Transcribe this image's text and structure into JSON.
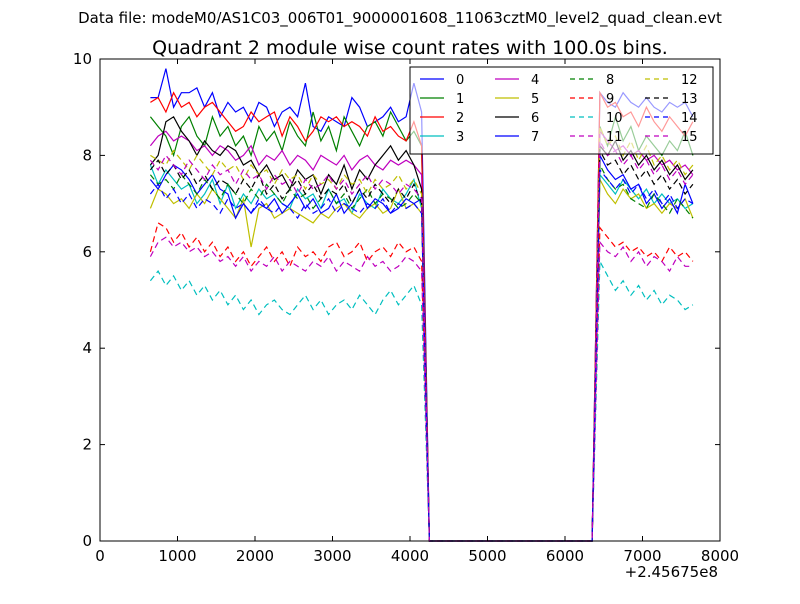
{
  "figure": {
    "suptitle": "Data file: modeM0/AS1C03_006T01_9000001608_11063cztM0_level2_quad_clean.evt"
  },
  "chart_data": {
    "type": "line",
    "title": "Quadrant 2 module wise count rates with 100.0s bins.",
    "xlabel": "",
    "ylabel": "",
    "x_offset_label": "+2.45675e8",
    "xlim": [
      0,
      8000
    ],
    "ylim": [
      0,
      10
    ],
    "x_ticks": [
      "0",
      "1000",
      "2000",
      "3000",
      "4000",
      "5000",
      "6000",
      "7000",
      "8000"
    ],
    "y_ticks": [
      "0",
      "2",
      "4",
      "6",
      "8",
      "10"
    ],
    "grid": false,
    "legend": {
      "placement": "top-right",
      "columns": 4
    },
    "x": [
      650,
      750,
      850,
      950,
      1050,
      1150,
      1250,
      1350,
      1450,
      1550,
      1650,
      1750,
      1850,
      1950,
      2050,
      2150,
      2250,
      2350,
      2450,
      2550,
      2650,
      2750,
      2850,
      2950,
      3050,
      3150,
      3250,
      3350,
      3450,
      3550,
      3650,
      3750,
      3850,
      3950,
      4050,
      4150,
      4250,
      4350,
      4450,
      4550,
      4650,
      4750,
      4850,
      4950,
      5050,
      5150,
      5250,
      5350,
      5450,
      5550,
      5650,
      5750,
      5850,
      5950,
      6050,
      6150,
      6250,
      6350,
      6450,
      6550,
      6650,
      6750,
      6850,
      6950,
      7050,
      7150,
      7250,
      7350,
      7450,
      7550,
      7650
    ],
    "series": [
      {
        "name": "0",
        "color": "#0000ff",
        "dash": "solid",
        "values": [
          9.2,
          9.2,
          9.8,
          9.0,
          9.3,
          9.3,
          9.4,
          9.0,
          9.3,
          8.8,
          9.1,
          8.9,
          9.0,
          8.7,
          9.1,
          9.0,
          8.6,
          8.9,
          9.0,
          8.8,
          9.5,
          8.6,
          8.5,
          8.8,
          8.7,
          8.6,
          9.2,
          9.0,
          8.6,
          8.7,
          8.8,
          9.0,
          8.7,
          8.8,
          9.5,
          8.9,
          0,
          0,
          0,
          0,
          0,
          0,
          0,
          0,
          0,
          0,
          0,
          0,
          0,
          0,
          0,
          0,
          0,
          0,
          0,
          0,
          0,
          0,
          9.3,
          9.1,
          9.0,
          9.3,
          9.1,
          9.0,
          9.2,
          9.0,
          8.9,
          9.1,
          9.0,
          9.1,
          8.8
        ]
      },
      {
        "name": "1",
        "color": "#008000",
        "dash": "solid",
        "values": [
          8.8,
          8.6,
          8.4,
          8.0,
          8.6,
          8.8,
          8.4,
          8.2,
          8.8,
          8.4,
          8.6,
          8.2,
          8.4,
          8.0,
          8.6,
          8.3,
          8.5,
          8.1,
          8.7,
          8.4,
          8.2,
          8.9,
          8.3,
          8.6,
          8.1,
          8.8,
          8.5,
          8.2,
          8.6,
          8.7,
          8.4,
          8.9,
          8.6,
          8.3,
          8.5,
          8.2,
          0,
          0,
          0,
          0,
          0,
          0,
          0,
          0,
          0,
          0,
          0,
          0,
          0,
          0,
          0,
          0,
          0,
          0,
          0,
          0,
          0,
          0,
          8.6,
          8.2,
          8.8,
          8.3,
          8.6,
          8.1,
          8.4,
          8.2,
          8.0,
          8.3,
          8.1,
          8.5,
          8.0
        ]
      },
      {
        "name": "2",
        "color": "#ff0000",
        "dash": "solid",
        "values": [
          9.1,
          9.2,
          8.9,
          9.3,
          9.0,
          9.1,
          8.8,
          9.0,
          9.1,
          8.9,
          8.7,
          8.5,
          8.6,
          8.9,
          8.7,
          8.8,
          8.9,
          8.4,
          8.8,
          8.6,
          8.3,
          8.5,
          8.8,
          8.7,
          8.8,
          8.6,
          8.7,
          8.6,
          8.4,
          8.8,
          8.5,
          8.6,
          8.4,
          8.3,
          8.7,
          8.2,
          0,
          0,
          0,
          0,
          0,
          0,
          0,
          0,
          0,
          0,
          0,
          0,
          0,
          0,
          0,
          0,
          0,
          0,
          0,
          0,
          0,
          0,
          9.3,
          9.0,
          9.1,
          8.8,
          8.9,
          8.6,
          9.0,
          8.7,
          8.5,
          8.8,
          8.6,
          8.4,
          8.7
        ]
      },
      {
        "name": "3",
        "color": "#00bfbf",
        "dash": "solid",
        "values": [
          7.8,
          7.4,
          7.7,
          7.5,
          7.3,
          7.4,
          7.0,
          7.2,
          7.5,
          7.0,
          7.4,
          6.9,
          7.2,
          7.0,
          7.3,
          7.1,
          7.2,
          7.0,
          6.9,
          7.3,
          7.1,
          7.2,
          6.9,
          7.3,
          7.0,
          7.1,
          6.8,
          7.2,
          7.0,
          6.9,
          7.3,
          7.1,
          7.0,
          7.2,
          7.5,
          6.9,
          0,
          0,
          0,
          0,
          0,
          0,
          0,
          0,
          0,
          0,
          0,
          0,
          0,
          0,
          0,
          0,
          0,
          0,
          0,
          0,
          0,
          0,
          7.6,
          7.4,
          7.2,
          7.5,
          7.3,
          7.1,
          7.3,
          7.0,
          7.2,
          7.0,
          7.1,
          6.9,
          7.0
        ]
      },
      {
        "name": "4",
        "color": "#bf00bf",
        "dash": "solid",
        "values": [
          8.2,
          8.4,
          8.5,
          8.3,
          8.4,
          8.3,
          8.1,
          8.2,
          8.0,
          8.2,
          8.1,
          7.9,
          8.0,
          8.2,
          7.8,
          8.0,
          7.9,
          8.1,
          7.8,
          8.0,
          7.9,
          7.7,
          8.0,
          7.9,
          7.8,
          8.0,
          7.7,
          7.9,
          8.0,
          7.8,
          7.7,
          7.9,
          7.8,
          7.9,
          7.8,
          7.6,
          0,
          0,
          0,
          0,
          0,
          0,
          0,
          0,
          0,
          0,
          0,
          0,
          0,
          0,
          0,
          0,
          0,
          0,
          0,
          0,
          0,
          0,
          8.5,
          8.3,
          8.1,
          8.2,
          8.0,
          8.1,
          7.9,
          8.0,
          7.8,
          7.9,
          7.7,
          7.8,
          7.6
        ]
      },
      {
        "name": "5",
        "color": "#bfbf00",
        "dash": "solid",
        "values": [
          6.9,
          7.3,
          7.2,
          7.0,
          7.1,
          6.9,
          7.2,
          7.0,
          7.3,
          7.1,
          6.9,
          6.7,
          7.1,
          6.1,
          6.9,
          7.0,
          6.7,
          6.8,
          6.9,
          6.8,
          6.7,
          6.6,
          6.8,
          6.7,
          6.9,
          7.0,
          6.8,
          6.7,
          6.9,
          7.0,
          6.8,
          6.9,
          7.3,
          6.9,
          7.0,
          6.8,
          0,
          0,
          0,
          0,
          0,
          0,
          0,
          0,
          0,
          0,
          0,
          0,
          0,
          0,
          0,
          0,
          0,
          0,
          0,
          0,
          0,
          0,
          7.5,
          7.2,
          7.0,
          7.3,
          7.1,
          7.2,
          6.9,
          7.0,
          6.8,
          7.0,
          6.9,
          7.1,
          6.7
        ]
      },
      {
        "name": "6",
        "color": "#000000",
        "dash": "solid",
        "values": [
          7.8,
          8.0,
          8.7,
          8.8,
          8.5,
          8.3,
          8.0,
          8.3,
          8.1,
          8.0,
          8.2,
          8.1,
          7.8,
          7.9,
          7.6,
          7.8,
          7.5,
          7.6,
          7.3,
          7.7,
          7.5,
          7.6,
          7.2,
          7.6,
          7.4,
          7.8,
          7.3,
          7.7,
          7.5,
          7.8,
          8.0,
          8.2,
          7.9,
          8.1,
          7.8,
          7.3,
          0,
          0,
          0,
          0,
          0,
          0,
          0,
          0,
          0,
          0,
          0,
          0,
          0,
          0,
          0,
          0,
          0,
          0,
          0,
          0,
          0,
          0,
          8.2,
          8.0,
          8.3,
          7.9,
          8.1,
          7.8,
          8.0,
          7.7,
          7.9,
          7.6,
          7.8,
          7.5,
          7.7
        ]
      },
      {
        "name": "7",
        "color": "#0000ff",
        "dash": "solid",
        "values": [
          7.5,
          7.3,
          7.6,
          7.8,
          7.7,
          7.5,
          7.2,
          7.4,
          7.6,
          7.3,
          7.2,
          6.7,
          7.0,
          6.8,
          7.0,
          6.9,
          7.1,
          6.8,
          7.0,
          7.2,
          6.9,
          7.1,
          6.8,
          6.9,
          7.2,
          6.8,
          7.0,
          7.3,
          6.9,
          7.1,
          7.0,
          6.8,
          6.9,
          7.1,
          7.0,
          7.1,
          0,
          0,
          0,
          0,
          0,
          0,
          0,
          0,
          0,
          0,
          0,
          0,
          0,
          0,
          0,
          0,
          0,
          0,
          0,
          0,
          0,
          0,
          8.0,
          7.7,
          7.5,
          7.6,
          7.3,
          7.4,
          7.0,
          7.2,
          6.9,
          7.1,
          6.8,
          7.4,
          7.0
        ]
      },
      {
        "name": "8",
        "color": "#008000",
        "dash": "dashed",
        "values": [
          7.6,
          7.4,
          7.5,
          7.3,
          7.6,
          7.4,
          7.2,
          7.5,
          7.3,
          7.1,
          7.4,
          7.2,
          7.0,
          7.3,
          7.1,
          7.4,
          7.2,
          7.0,
          7.3,
          7.1,
          7.2,
          6.9,
          7.1,
          7.3,
          7.0,
          7.2,
          6.9,
          7.1,
          7.3,
          7.0,
          7.2,
          7.1,
          6.9,
          7.0,
          7.2,
          7.0,
          0,
          0,
          0,
          0,
          0,
          0,
          0,
          0,
          0,
          0,
          0,
          0,
          0,
          0,
          0,
          0,
          0,
          0,
          0,
          0,
          0,
          0,
          7.8,
          7.5,
          7.3,
          7.4,
          7.1,
          7.0,
          6.9,
          7.2,
          7.0,
          6.8,
          7.1,
          6.9,
          6.7
        ]
      },
      {
        "name": "9",
        "color": "#ff0000",
        "dash": "dashed",
        "values": [
          6.0,
          6.6,
          6.5,
          6.2,
          6.4,
          6.1,
          6.3,
          6.0,
          6.2,
          5.9,
          6.1,
          5.8,
          6.0,
          5.7,
          5.9,
          6.1,
          5.8,
          6.0,
          5.7,
          6.1,
          5.9,
          6.0,
          5.8,
          6.1,
          6.2,
          5.9,
          6.0,
          6.2,
          5.8,
          6.0,
          6.1,
          5.9,
          6.2,
          6.0,
          6.1,
          5.8,
          0,
          0,
          0,
          0,
          0,
          0,
          0,
          0,
          0,
          0,
          0,
          0,
          0,
          0,
          0,
          0,
          0,
          0,
          0,
          0,
          0,
          0,
          6.5,
          6.3,
          6.1,
          6.2,
          6.0,
          6.1,
          5.9,
          6.0,
          5.8,
          6.1,
          5.9,
          6.0,
          5.8
        ]
      },
      {
        "name": "10",
        "color": "#00bfbf",
        "dash": "dashed",
        "values": [
          5.4,
          5.6,
          5.3,
          5.5,
          5.2,
          5.4,
          5.1,
          5.3,
          5.0,
          5.2,
          4.9,
          5.1,
          4.8,
          5.0,
          4.7,
          4.9,
          5.0,
          4.8,
          4.7,
          4.9,
          5.1,
          4.8,
          5.0,
          4.7,
          4.9,
          5.0,
          4.8,
          5.1,
          4.9,
          4.7,
          5.0,
          5.2,
          4.9,
          5.1,
          5.3,
          4.9,
          0,
          0,
          0,
          0,
          0,
          0,
          0,
          0,
          0,
          0,
          0,
          0,
          0,
          0,
          0,
          0,
          0,
          0,
          0,
          0,
          0,
          0,
          5.8,
          5.5,
          5.2,
          5.4,
          5.1,
          5.3,
          5.0,
          5.2,
          4.9,
          5.1,
          5.0,
          4.8,
          4.9
        ]
      },
      {
        "name": "11",
        "color": "#bf00bf",
        "dash": "dashed",
        "values": [
          5.9,
          6.2,
          6.3,
          6.1,
          6.2,
          6.0,
          6.1,
          5.9,
          6.0,
          5.8,
          5.9,
          5.7,
          5.9,
          5.6,
          5.8,
          5.7,
          5.9,
          5.6,
          5.8,
          5.7,
          5.6,
          5.8,
          5.7,
          5.9,
          5.6,
          5.8,
          5.7,
          5.6,
          5.9,
          5.7,
          5.8,
          5.6,
          5.7,
          5.9,
          5.8,
          5.6,
          0,
          0,
          0,
          0,
          0,
          0,
          0,
          0,
          0,
          0,
          0,
          0,
          0,
          0,
          0,
          0,
          0,
          0,
          0,
          0,
          0,
          0,
          6.2,
          6.0,
          5.9,
          6.1,
          5.8,
          6.0,
          5.7,
          5.9,
          5.8,
          5.6,
          5.9,
          5.7,
          5.7
        ]
      },
      {
        "name": "12",
        "color": "#bfbf00",
        "dash": "dashed",
        "values": [
          8.0,
          7.9,
          7.8,
          8.1,
          7.9,
          7.7,
          8.0,
          7.8,
          7.6,
          7.9,
          7.7,
          7.8,
          7.5,
          7.8,
          7.6,
          7.7,
          7.4,
          7.7,
          7.5,
          7.6,
          7.3,
          7.6,
          7.4,
          7.5,
          7.3,
          7.6,
          7.4,
          7.5,
          7.2,
          7.5,
          7.3,
          7.4,
          7.6,
          7.3,
          7.5,
          7.2,
          0,
          0,
          0,
          0,
          0,
          0,
          0,
          0,
          0,
          0,
          0,
          0,
          0,
          0,
          0,
          0,
          0,
          0,
          0,
          0,
          0,
          0,
          8.6,
          8.2,
          8.4,
          8.0,
          8.3,
          7.9,
          8.2,
          7.8,
          8.0,
          7.7,
          7.9,
          7.6,
          7.8
        ]
      },
      {
        "name": "13",
        "color": "#000000",
        "dash": "dashed",
        "values": [
          7.7,
          7.9,
          7.6,
          7.8,
          7.5,
          7.7,
          7.4,
          7.6,
          7.3,
          7.5,
          7.4,
          7.2,
          7.5,
          7.3,
          7.6,
          7.2,
          7.4,
          7.1,
          7.3,
          7.5,
          7.2,
          7.4,
          7.1,
          7.3,
          7.2,
          7.4,
          7.0,
          7.3,
          7.1,
          7.4,
          7.2,
          7.0,
          7.3,
          7.1,
          7.4,
          7.0,
          0,
          0,
          0,
          0,
          0,
          0,
          0,
          0,
          0,
          0,
          0,
          0,
          0,
          0,
          0,
          0,
          0,
          0,
          0,
          0,
          0,
          0,
          8.1,
          7.8,
          7.9,
          7.6,
          7.8,
          7.5,
          7.7,
          7.4,
          7.6,
          7.3,
          7.5,
          7.2,
          7.4
        ]
      },
      {
        "name": "14",
        "color": "#0000ff",
        "dash": "dashed",
        "values": [
          7.2,
          7.4,
          7.1,
          7.3,
          7.0,
          7.2,
          6.9,
          7.1,
          7.0,
          6.8,
          7.1,
          6.9,
          7.0,
          6.8,
          7.1,
          6.9,
          6.8,
          7.0,
          6.9,
          6.7,
          7.0,
          6.8,
          6.9,
          7.1,
          6.8,
          7.0,
          6.9,
          6.8,
          7.0,
          6.9,
          7.1,
          6.8,
          7.0,
          6.9,
          7.0,
          6.8,
          0,
          0,
          0,
          0,
          0,
          0,
          0,
          0,
          0,
          0,
          0,
          0,
          0,
          0,
          0,
          0,
          0,
          0,
          0,
          0,
          0,
          0,
          7.7,
          7.5,
          7.3,
          7.5,
          7.2,
          7.4,
          7.1,
          7.3,
          7.0,
          7.2,
          6.9,
          7.1,
          7.0
        ]
      },
      {
        "name": "15",
        "color": "#bf00bf",
        "dash": "dashed",
        "values": [
          7.9,
          7.7,
          8.0,
          7.8,
          7.6,
          7.9,
          7.7,
          7.5,
          7.8,
          7.6,
          7.7,
          7.4,
          7.7,
          7.5,
          7.6,
          7.3,
          7.6,
          7.4,
          7.5,
          7.2,
          7.5,
          7.3,
          7.4,
          7.6,
          7.3,
          7.5,
          7.2,
          7.4,
          7.6,
          7.3,
          7.5,
          7.4,
          7.2,
          7.4,
          7.3,
          7.1,
          0,
          0,
          0,
          0,
          0,
          0,
          0,
          0,
          0,
          0,
          0,
          0,
          0,
          0,
          0,
          0,
          0,
          0,
          0,
          0,
          0,
          0,
          8.3,
          8.0,
          8.1,
          7.8,
          8.0,
          7.7,
          7.9,
          7.6,
          7.8,
          7.5,
          7.7,
          7.4,
          7.6
        ]
      }
    ]
  }
}
